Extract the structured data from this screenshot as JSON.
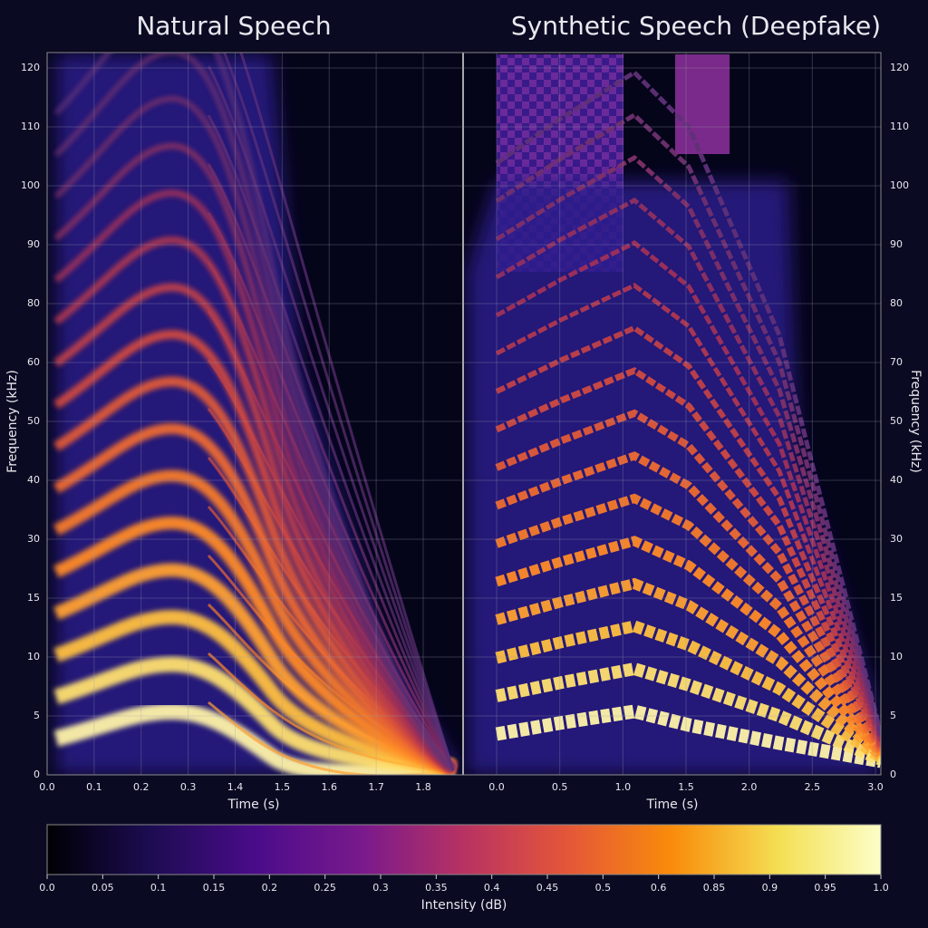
{
  "chart_data": [
    {
      "type": "spectrogram",
      "title": "Natural Speech",
      "x_label": "Time (s)",
      "y_label": "Frequency (kHz)",
      "xticks": [
        {
          "value": 0,
          "label": "0.0"
        },
        0.1,
        0.2,
        0.3,
        1.4,
        1.5,
        1.6,
        1.7,
        1.8
      ],
      "yticks": [
        0,
        5,
        10,
        15,
        30,
        40,
        50,
        60,
        80,
        90,
        100,
        110,
        120
      ],
      "grid": true
    },
    {
      "type": "spectrogram",
      "title": "Synthetic Speech (Deepfake)",
      "x_label": "Time (s)",
      "y_label": "Frequency (kHz)",
      "xticks": [
        {
          "value": 0,
          "label": "0.0"
        },
        0.5,
        {
          "value": 1,
          "label": "1.0"
        },
        1.5,
        {
          "value": 2,
          "label": "2.0"
        },
        2.5,
        {
          "value": 3,
          "label": "3.0"
        }
      ],
      "yticks": [
        0,
        5,
        10,
        15,
        30,
        40,
        50,
        70,
        80,
        90,
        100,
        110,
        120
      ],
      "grid": true
    }
  ],
  "colorbar": {
    "label": "Intensity (dB)",
    "ticks": [
      {
        "value": 0,
        "label": "0.0"
      },
      0.05,
      0.1,
      0.15,
      0.2,
      0.25,
      0.3,
      0.35,
      0.4,
      0.45,
      0.5,
      0.6,
      0.85,
      0.9,
      0.95,
      {
        "value": 1,
        "label": "1.0"
      }
    ]
  }
}
